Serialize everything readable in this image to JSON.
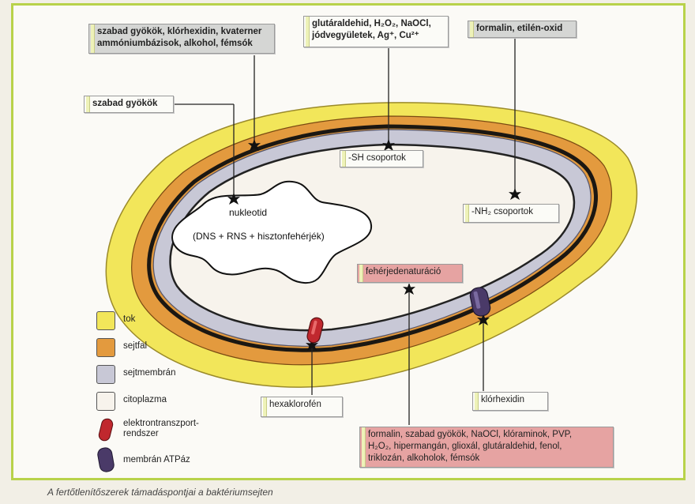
{
  "labels": {
    "top_left_group": "szabad gyökök, klórhexidin, kvaterner ammóniumbázisok, alkohol, fémsók",
    "top_center_group_line1": "glutáraldehid, H₂O₂, NaOCl,",
    "top_center_group_line2": "jódvegyületek, Ag⁺, Cu²⁺",
    "top_right_group": "formalin, etilén-oxid",
    "left_radicals": "szabad gyökök",
    "sh_groups": "-SH csoportok",
    "nh2_groups": "-NH₂ csoportok",
    "protein_denaturation": "fehérjedenaturáció",
    "hexachlorophene": "hexaklorofén",
    "chlorhexidine": "klórhexidin",
    "bottom_group_line1": "formalin, szabad gyökök, NaOCl, klóraminok, PVP,",
    "bottom_group_line2": "H₂O₂, hipermangán, glioxál, glutáraldehid, fenol,",
    "bottom_group_line3": "triklozán, alkoholok, fémsók"
  },
  "nucleoid": {
    "title": "nukleotid",
    "content": "(DNS + RNS + hisztonfehérjék)"
  },
  "legend": [
    {
      "label": "tok",
      "color": "#f2e65a"
    },
    {
      "label": "sejtfal",
      "color": "#e39a3e"
    },
    {
      "label": "sejtmembrán",
      "color": "#c8c8d6"
    },
    {
      "label": "citoplazma",
      "color": "#f7f3ec"
    },
    {
      "label": "elektrontranszport-rendszer",
      "color": "#c0282e"
    },
    {
      "label": "membrán ATPáz",
      "color": "#4a3a68"
    }
  ],
  "caption": "A fertőtlenítőszerek támadáspontjai a baktériumsejten"
}
